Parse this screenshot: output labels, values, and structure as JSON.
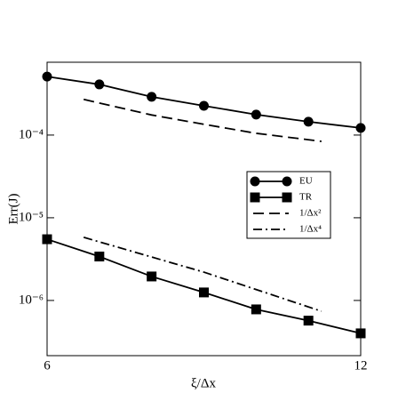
{
  "chart_data": {
    "type": "line",
    "x_label": "ξ/Δx",
    "y_label": "Err(J)",
    "xlim": [
      6,
      12
    ],
    "xticks": [
      6,
      12
    ],
    "ylim": [
      2.15e-07,
      0.00076
    ],
    "log_y": true,
    "yticks": [
      {
        "value": 0.0001,
        "label": "10⁻⁴"
      },
      {
        "value": 1e-05,
        "label": "10⁻⁵"
      },
      {
        "value": 1e-06,
        "label": "10⁻⁶"
      }
    ],
    "legend": "right",
    "series": [
      {
        "name": "EU",
        "color": "#000000",
        "marker": "circle",
        "dash": "solid",
        "x": [
          6,
          7,
          8,
          9,
          10,
          11,
          12
        ],
        "values": [
          0.00051,
          0.00041,
          0.00029,
          0.000226,
          0.000177,
          0.000145,
          0.000122
        ]
      },
      {
        "name": "TR",
        "color": "#000000",
        "marker": "square",
        "dash": "solid",
        "x": [
          6,
          7,
          8,
          9,
          10,
          11,
          12
        ],
        "values": [
          5.5e-06,
          3.4e-06,
          1.95e-06,
          1.25e-06,
          7.8e-07,
          5.7e-07,
          4e-07
        ]
      },
      {
        "name": "1/Δx²",
        "color": "#000000",
        "marker": "none",
        "dash": "dashed",
        "x": [
          6.7,
          8,
          9,
          10,
          11.25
        ],
        "values": [
          0.00027,
          0.000175,
          0.000135,
          0.000105,
          8.4e-05
        ]
      },
      {
        "name": "1/Δx⁴",
        "color": "#000000",
        "marker": "none",
        "dash": "dashdot",
        "x": [
          6.7,
          9,
          11.25
        ],
        "values": [
          5.8e-06,
          2.2e-06,
          7.4e-07
        ]
      }
    ]
  }
}
